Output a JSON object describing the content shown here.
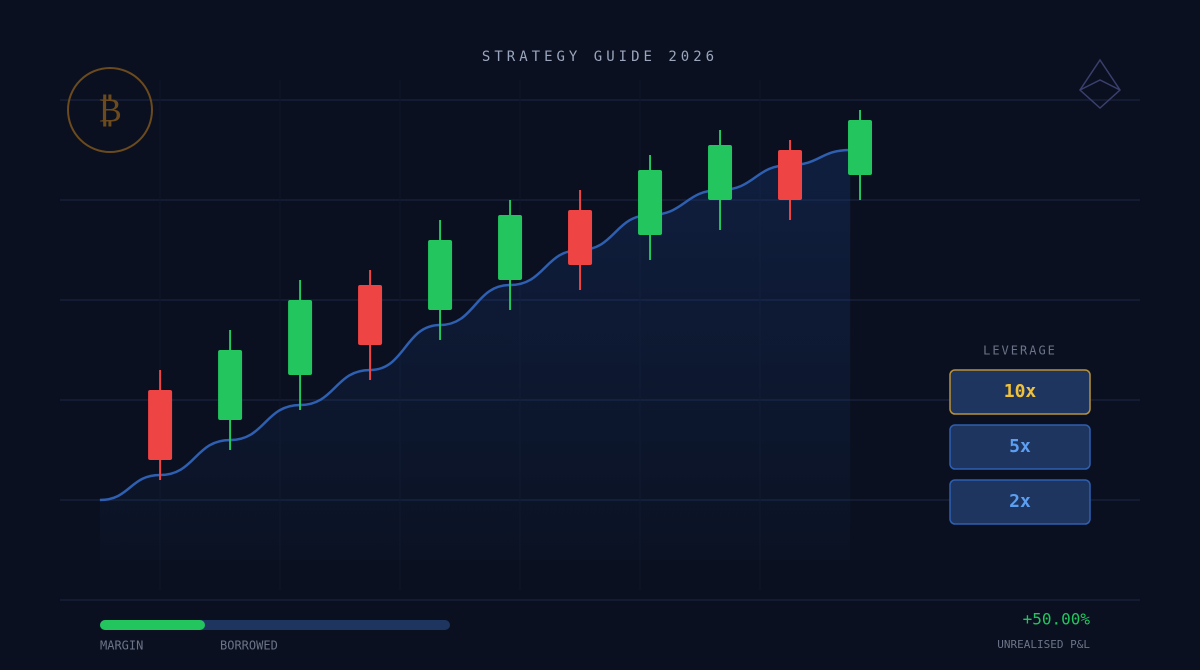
{
  "title": "STRATEGY GUIDE 2026",
  "coin_icon": "₿",
  "chart_data": {
    "type": "candlestick",
    "x": [
      0,
      1,
      2,
      3,
      4,
      5,
      6,
      7,
      8,
      9,
      10
    ],
    "open": [
      210,
      180,
      225,
      315,
      290,
      320,
      390,
      365,
      400,
      450,
      425
    ],
    "high": [
      230,
      270,
      320,
      330,
      380,
      400,
      410,
      445,
      470,
      460,
      490
    ],
    "low": [
      120,
      150,
      190,
      220,
      260,
      290,
      310,
      340,
      370,
      380,
      400
    ],
    "close": [
      140,
      250,
      300,
      255,
      360,
      385,
      335,
      430,
      455,
      400,
      480
    ],
    "up_color": "#22c55e",
    "down_color": "#ef4444",
    "trend": {
      "x": [
        -0.86,
        0,
        1,
        2,
        3,
        4,
        5,
        6,
        7,
        8,
        9,
        9.86
      ],
      "values": [
        100,
        125,
        160,
        195,
        230,
        275,
        315,
        350,
        385,
        410,
        435,
        450
      ],
      "color": "#2f5fb0"
    },
    "xlim": [
      -1.43,
      14
    ],
    "ylim": [
      0,
      500
    ]
  },
  "leverage": {
    "label": "LEVERAGE",
    "options": [
      "10x",
      "5x",
      "2x"
    ],
    "selected": 0
  },
  "position": {
    "margin_label": "MARGIN",
    "borrowed_label": "BORROWED",
    "margin": 30,
    "borrowed": 70,
    "pnl": "+50.00%",
    "pnl_label": "UNREALISED P&L"
  }
}
